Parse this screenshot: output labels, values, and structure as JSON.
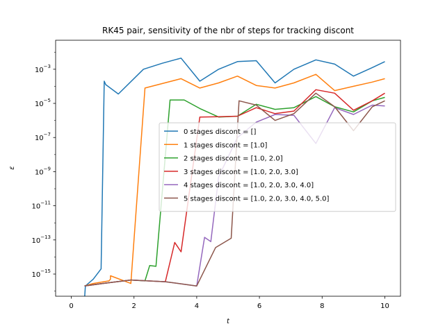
{
  "chart_data": {
    "type": "line",
    "title": "RK45 pair, sensitivity of the nbr of steps for tracking discont",
    "xlabel": "t",
    "ylabel": "ε",
    "xlim": [
      -0.5,
      10.5
    ],
    "ylim_log10": [
      -16.3,
      -1.3
    ],
    "yscale": "log",
    "x_ticks": [
      0,
      2,
      4,
      6,
      8,
      10
    ],
    "x_tick_labels": [
      "0",
      "2",
      "4",
      "6",
      "8",
      "10"
    ],
    "y_ticks_exp": [
      -15,
      -13,
      -11,
      -9,
      -7,
      -5,
      -3
    ],
    "y_tick_labels": [
      {
        "base": "10",
        "exp": "−15"
      },
      {
        "base": "10",
        "exp": "−13"
      },
      {
        "base": "10",
        "exp": "−11"
      },
      {
        "base": "10",
        "exp": "−9"
      },
      {
        "base": "10",
        "exp": "−7"
      },
      {
        "base": "10",
        "exp": "−5"
      },
      {
        "base": "10",
        "exp": "−3"
      }
    ],
    "legend_placement": "center-right",
    "series": [
      {
        "name": "0 stages discont = []",
        "color": "#1f77b4",
        "points": [
          [
            0.42,
            -16.5
          ],
          [
            0.45,
            -15.7
          ],
          [
            0.7,
            -15.3
          ],
          [
            0.95,
            -14.7
          ],
          [
            1.05,
            -3.7
          ],
          [
            1.1,
            -3.9
          ],
          [
            1.5,
            -4.45
          ],
          [
            2.3,
            -3.0
          ],
          [
            2.9,
            -2.65
          ],
          [
            3.5,
            -2.35
          ],
          [
            4.1,
            -3.7
          ],
          [
            4.7,
            -3.0
          ],
          [
            5.3,
            -2.55
          ],
          [
            5.9,
            -2.5
          ],
          [
            6.5,
            -3.8
          ],
          [
            7.1,
            -3.0
          ],
          [
            7.8,
            -2.45
          ],
          [
            8.4,
            -2.7
          ],
          [
            9.0,
            -3.4
          ],
          [
            9.6,
            -2.9
          ],
          [
            10.0,
            -2.55
          ]
        ]
      },
      {
        "name": "1 stages discont = [1.0]",
        "color": "#ff7f0e",
        "points": [
          [
            0.42,
            -15.7
          ],
          [
            0.7,
            -15.55
          ],
          [
            1.2,
            -15.4
          ],
          [
            1.25,
            -15.3
          ],
          [
            1.25,
            -15.3
          ],
          [
            1.25,
            -15.3
          ],
          [
            1.25,
            -15.3
          ],
          [
            1.25,
            -15.3
          ],
          [
            1.25,
            -15.1
          ],
          [
            1.25,
            -15.1
          ],
          [
            1.25,
            -15.1
          ],
          [
            1.25,
            -15.1
          ],
          [
            1.25,
            -15.1
          ],
          [
            1.25,
            -15.1
          ],
          [
            1.25,
            -15.1
          ],
          [
            1.25,
            -15.1
          ],
          [
            1.25,
            -15.1
          ],
          [
            1.25,
            -15.1
          ],
          [
            1.25,
            -15.1
          ],
          [
            1.25,
            -15.1
          ],
          [
            1.25,
            -15.1
          ],
          [
            1.25,
            -15.1
          ],
          [
            1.25,
            -15.1
          ],
          [
            1.25,
            -15.1
          ],
          [
            1.25,
            -15.1
          ],
          [
            1.25,
            -15.1
          ],
          [
            1.25,
            -15.1
          ],
          [
            1.25,
            -15.1
          ],
          [
            1.25,
            -15.1
          ],
          [
            1.25,
            -15.1
          ],
          [
            1.25,
            -15.1
          ],
          [
            1.25,
            -15.1
          ],
          [
            1.25,
            -15.1
          ],
          [
            1.25,
            -15.1
          ],
          [
            1.25,
            -15.1
          ],
          [
            1.25,
            -15.1
          ],
          [
            1.25,
            -15.1
          ],
          [
            1.25,
            -15.1
          ],
          [
            1.25,
            -15.1
          ],
          [
            1.25,
            -15.1
          ],
          [
            1.25,
            -15.1
          ],
          [
            1.25,
            -15.1
          ],
          [
            1.25,
            -15.1
          ],
          [
            1.25,
            -15.1
          ],
          [
            1.25,
            -15.1
          ],
          [
            1.25,
            -15.1
          ],
          [
            1.25,
            -15.1
          ],
          [
            1.25,
            -15.1
          ],
          [
            1.25,
            -15.1
          ],
          [
            1.25,
            -15.1
          ],
          [
            1.25,
            -15.1
          ],
          [
            1.25,
            -15.1
          ],
          [
            1.25,
            -15.1
          ],
          [
            1.25,
            -15.1
          ],
          [
            1.25,
            -15.1
          ],
          [
            1.25,
            -15.1
          ],
          [
            1.25,
            -15.1
          ],
          [
            1.25,
            -15.1
          ],
          [
            1.25,
            -15.1
          ],
          [
            1.25,
            -15.1
          ],
          [
            1.25,
            -15.1
          ],
          [
            1.25,
            -15.1
          ],
          [
            1.25,
            -15.1
          ],
          [
            1.25,
            -15.1
          ],
          [
            1.25,
            -15.1
          ],
          [
            1.25,
            -15.1
          ],
          [
            1.25,
            -15.1
          ],
          [
            1.25,
            -15.1
          ],
          [
            1.25,
            -15.1
          ],
          [
            1.25,
            -15.1
          ],
          [
            1.25,
            -15.1
          ],
          [
            1.25,
            -15.1
          ],
          [
            1.25,
            -15.1
          ],
          [
            1.25,
            -15.1
          ],
          [
            1.25,
            -15.1
          ],
          [
            1.25,
            -15.1
          ],
          [
            1.25,
            -15.1
          ],
          [
            1.25,
            -15.1
          ],
          [
            1.25,
            -15.1
          ],
          [
            1.25,
            -15.1
          ],
          [
            1.25,
            -15.1
          ],
          [
            1.25,
            -15.1
          ],
          [
            1.25,
            -15.1
          ],
          [
            1.25,
            -15.1
          ],
          [
            1.25,
            -15.1
          ],
          [
            1.25,
            -15.1
          ],
          [
            1.25,
            -15.1
          ],
          [
            1.25,
            -15.1
          ],
          [
            1.25,
            -15.1
          ],
          [
            1.25,
            -15.1
          ],
          [
            1.25,
            -15.1
          ],
          [
            1.25,
            -15.1
          ],
          [
            1.25,
            -15.1
          ],
          [
            1.25,
            -15.1
          ],
          [
            1.25,
            -15.1
          ],
          [
            1.25,
            -15.1
          ],
          [
            1.25,
            -15.1
          ],
          [
            1.25,
            -15.1
          ],
          [
            1.25,
            -15.1
          ],
          [
            1.25,
            -15.1
          ],
          [
            1.9,
            -15.55
          ],
          [
            2.35,
            -4.1
          ],
          [
            3.5,
            -3.55
          ],
          [
            4.1,
            -4.1
          ],
          [
            4.7,
            -3.8
          ],
          [
            5.3,
            -3.4
          ],
          [
            5.9,
            -3.95
          ],
          [
            6.5,
            -4.1
          ],
          [
            7.1,
            -3.8
          ],
          [
            7.8,
            -3.3
          ],
          [
            8.4,
            -4.25
          ],
          [
            9.0,
            -4.0
          ],
          [
            9.6,
            -3.75
          ],
          [
            10.0,
            -3.55
          ]
        ]
      },
      {
        "name": "2 stages discont = [1.0, 2.0]",
        "color": "#2ca02c",
        "points": [
          [
            0.42,
            -15.7
          ],
          [
            1.0,
            -15.55
          ],
          [
            1.9,
            -15.35
          ],
          [
            2.35,
            -15.4
          ],
          [
            2.35,
            -15.4
          ],
          [
            2.5,
            -14.5
          ],
          [
            2.7,
            -14.55
          ],
          [
            3.15,
            -4.8
          ],
          [
            3.6,
            -4.8
          ],
          [
            4.1,
            -5.3
          ],
          [
            4.7,
            -5.8
          ],
          [
            5.3,
            -5.75
          ],
          [
            5.9,
            -5.05
          ],
          [
            6.5,
            -5.35
          ],
          [
            7.1,
            -5.25
          ],
          [
            7.8,
            -4.6
          ],
          [
            8.4,
            -5.2
          ],
          [
            9.0,
            -5.5
          ],
          [
            9.6,
            -4.85
          ],
          [
            10.0,
            -4.65
          ]
        ]
      },
      {
        "name": "3 stages discont = [1.0, 2.0, 3.0]",
        "color": "#d62728",
        "points": [
          [
            0.42,
            -15.7
          ],
          [
            1.0,
            -15.55
          ],
          [
            1.9,
            -15.35
          ],
          [
            3.0,
            -15.45
          ],
          [
            3.3,
            -13.15
          ],
          [
            3.5,
            -13.7
          ],
          [
            4.1,
            -5.8
          ],
          [
            4.7,
            -5.78
          ],
          [
            5.3,
            -5.75
          ],
          [
            5.9,
            -5.25
          ],
          [
            6.5,
            -5.6
          ],
          [
            7.1,
            -5.45
          ],
          [
            7.8,
            -4.2
          ],
          [
            8.4,
            -4.4
          ],
          [
            9.0,
            -5.4
          ],
          [
            9.6,
            -4.85
          ],
          [
            10.0,
            -4.4
          ]
        ]
      },
      {
        "name": "4 stages discont = [1.0, 2.0, 3.0, 4.0]",
        "color": "#9467bd",
        "points": [
          [
            0.42,
            -15.7
          ],
          [
            1.0,
            -15.55
          ],
          [
            1.9,
            -15.35
          ],
          [
            3.0,
            -15.45
          ],
          [
            4.0,
            -15.7
          ],
          [
            4.25,
            -12.85
          ],
          [
            4.45,
            -13.1
          ],
          [
            4.7,
            -9.3
          ],
          [
            5.3,
            -7.0
          ],
          [
            5.9,
            -6.1
          ],
          [
            6.5,
            -5.65
          ],
          [
            7.1,
            -5.7
          ],
          [
            7.8,
            -7.35
          ],
          [
            8.4,
            -5.25
          ],
          [
            9.0,
            -5.65
          ],
          [
            9.6,
            -5.1
          ],
          [
            10.0,
            -5.15
          ]
        ]
      },
      {
        "name": "5 stages discont = [1.0, 2.0, 3.0, 4.0, 5.0]",
        "color": "#8c564b",
        "points": [
          [
            0.42,
            -15.7
          ],
          [
            1.0,
            -15.55
          ],
          [
            1.9,
            -15.35
          ],
          [
            3.0,
            -15.45
          ],
          [
            4.0,
            -15.7
          ],
          [
            4.6,
            -13.45
          ],
          [
            5.1,
            -12.9
          ],
          [
            5.35,
            -4.85
          ],
          [
            5.9,
            -5.1
          ],
          [
            6.5,
            -6.0
          ],
          [
            7.1,
            -5.6
          ],
          [
            7.8,
            -4.4
          ],
          [
            8.4,
            -5.2
          ],
          [
            9.0,
            -6.6
          ],
          [
            9.6,
            -5.2
          ],
          [
            10.0,
            -4.85
          ]
        ]
      }
    ]
  }
}
